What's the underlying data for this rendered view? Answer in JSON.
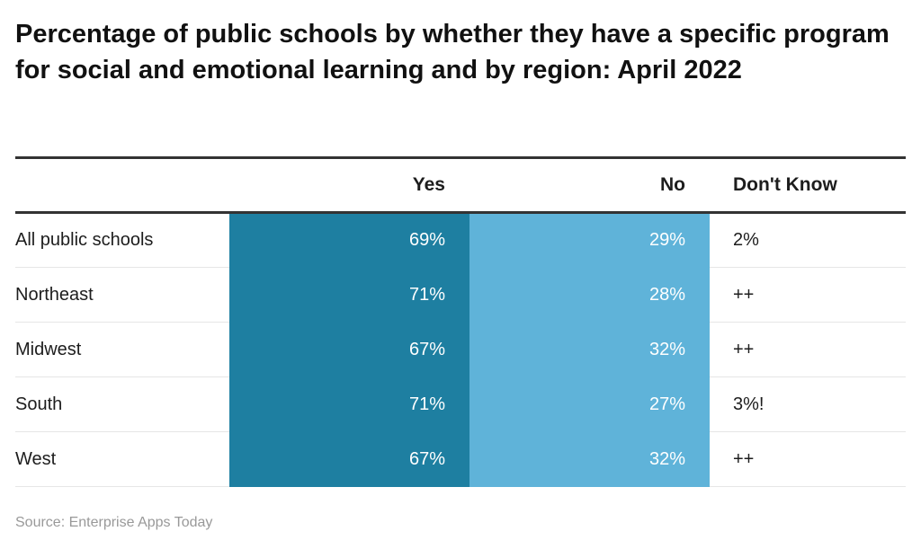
{
  "chart_data": {
    "type": "table",
    "title": "Percentage of public schools by whether they have a specific program for social and emotional learning and by region: April 2022",
    "columns": [
      "",
      "Yes",
      "No",
      "Don't Know"
    ],
    "rows": [
      [
        "All public schools",
        "69%",
        "29%",
        "2%"
      ],
      [
        "Northeast",
        "71%",
        "28%",
        "++"
      ],
      [
        "Midwest",
        "67%",
        "32%",
        "++"
      ],
      [
        "South",
        "71%",
        "27%",
        "3%!"
      ],
      [
        "West",
        "67%",
        "32%",
        "++"
      ]
    ],
    "colors": {
      "yes": "#1e7fa1",
      "no": "#5fb3d9"
    },
    "source": "Source: Enterprise Apps Today"
  }
}
